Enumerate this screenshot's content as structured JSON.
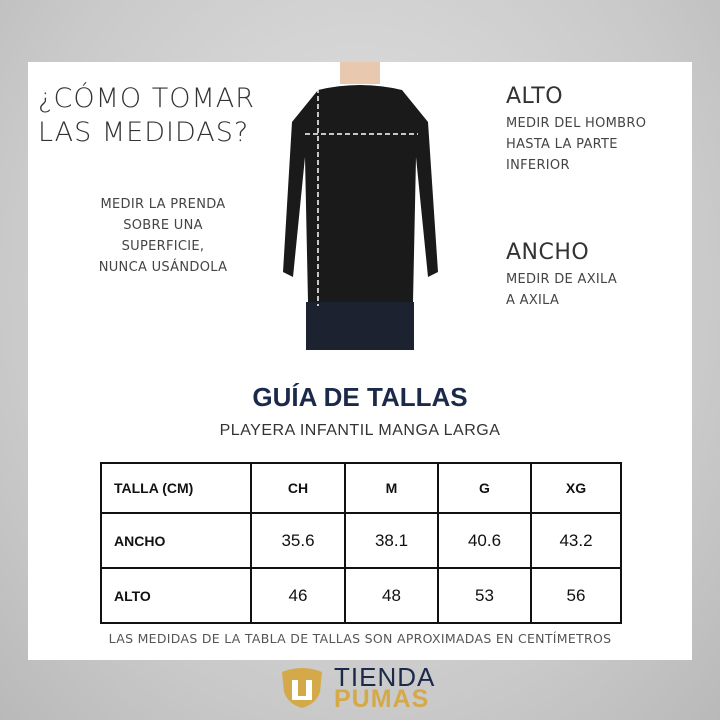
{
  "heading": [
    "¿CÓMO TOMAR",
    "LAS MEDIDAS?"
  ],
  "instruction": [
    "MEDIR LA PRENDA",
    "SOBRE UNA",
    "SUPERFICIE,",
    "NUNCA USÁNDOLA"
  ],
  "alto": {
    "title": "ALTO",
    "desc": [
      "MEDIR DEL HOMBRO",
      "HASTA LA PARTE",
      "INFERIOR"
    ]
  },
  "ancho": {
    "title": "ANCHO",
    "desc": [
      "MEDIR DE AXILA",
      "A AXILA"
    ]
  },
  "guide_title": "GUÍA DE TALLAS",
  "guide_subtitle": "PLAYERA INFANTIL MANGA LARGA",
  "table": {
    "headers": [
      "TALLA (CM)",
      "CH",
      "M",
      "G",
      "XG"
    ],
    "rows": [
      {
        "label": "ANCHO",
        "values": [
          "35.6",
          "38.1",
          "40.6",
          "43.2"
        ]
      },
      {
        "label": "ALTO",
        "values": [
          "46",
          "48",
          "53",
          "56"
        ]
      }
    ]
  },
  "footnote": "LAS MEDIDAS DE LA TABLA DE TALLAS SON APROXIMADAS EN CENTÍMETROS",
  "logo": {
    "line1": "TIENDA",
    "line2": "PUMAS"
  },
  "colors": {
    "navy": "#1b2a4a",
    "gold": "#d4a94a"
  }
}
